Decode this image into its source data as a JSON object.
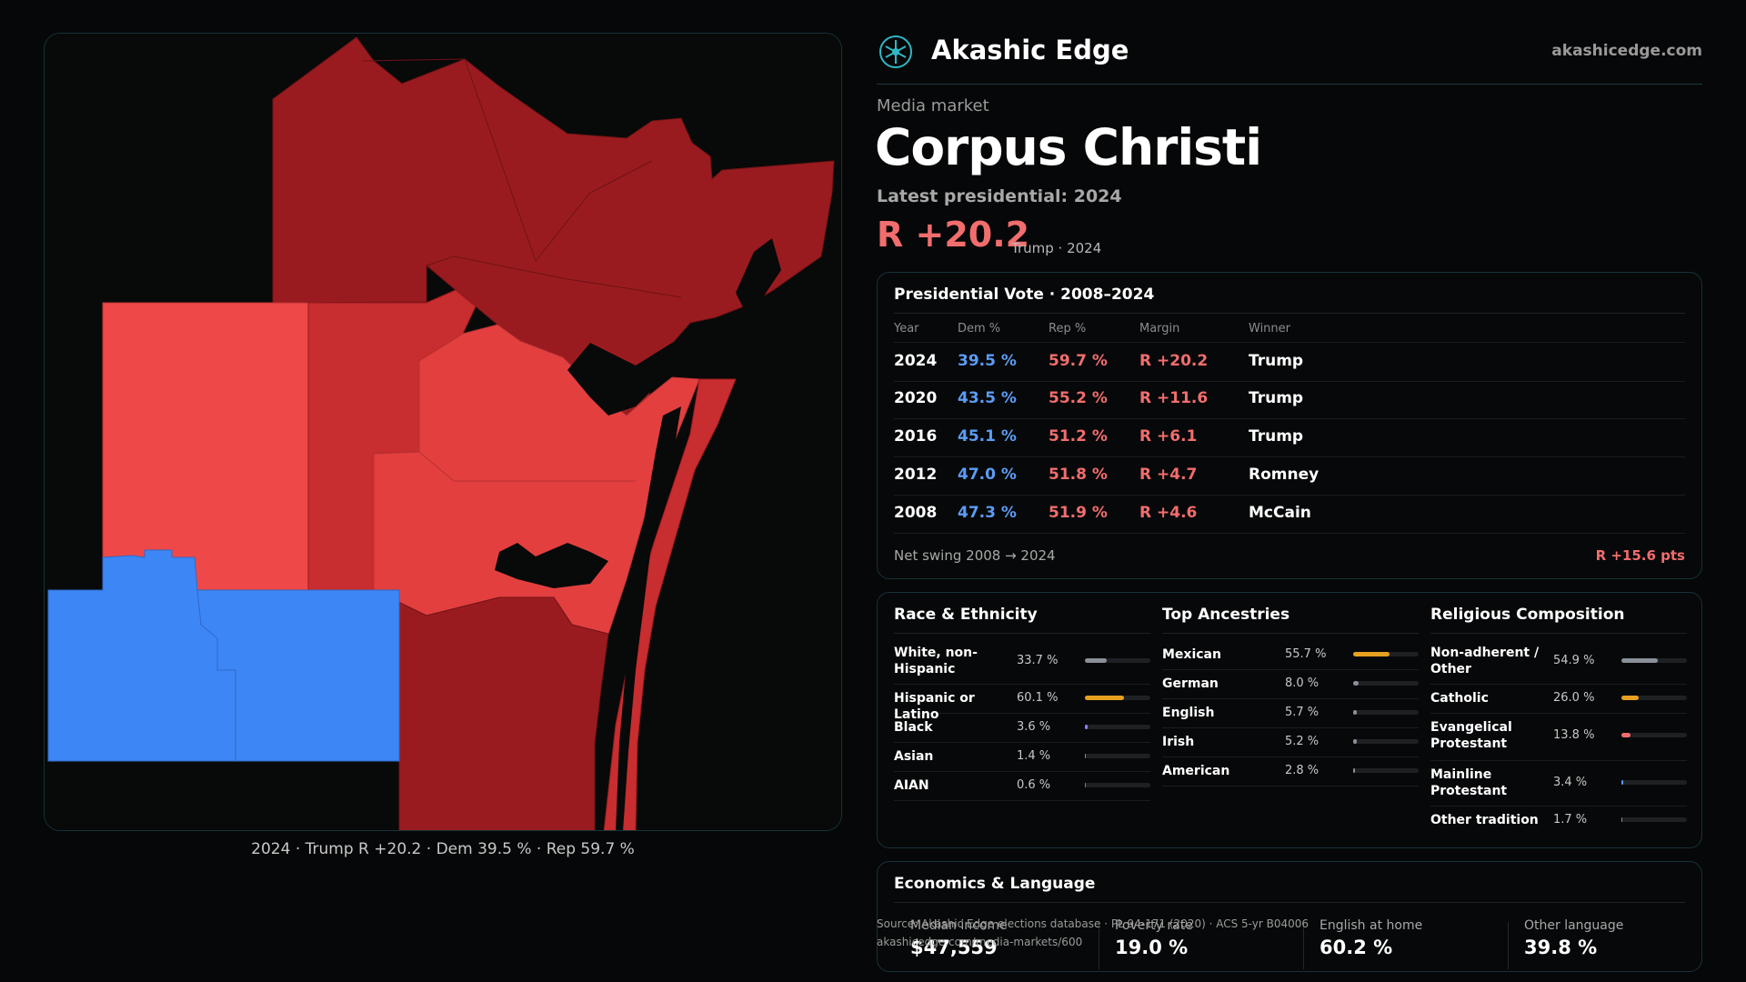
{
  "map": {
    "caption": "2024 · Trump R +20.2 · Dem 39.5 % · Rep 59.7 %",
    "colors": {
      "dark_red": "#9a1b1f",
      "red": "#ef4848",
      "mid_red": "#c82d2f",
      "blue": "#3d86f5",
      "water": "#080909"
    }
  },
  "header": {
    "brand": "Akashic Edge",
    "site": "akashicedge.com",
    "logo_icon": "akashic-logo-icon"
  },
  "market": {
    "kicker": "Media market",
    "name": "Corpus Christi",
    "latest_label": "Latest presidential: 2024",
    "margin": "R +20.2",
    "margin_sub": "Trump · 2024"
  },
  "vote_table": {
    "title": "Presidential Vote · 2008–2024",
    "headers": {
      "year": "Year",
      "dem": "Dem %",
      "rep": "Rep %",
      "margin": "Margin",
      "winner": "Winner"
    },
    "rows": [
      {
        "year": "2024",
        "dem": "39.5 %",
        "rep": "59.7 %",
        "margin": "R +20.2",
        "winner": "Trump"
      },
      {
        "year": "2020",
        "dem": "43.5 %",
        "rep": "55.2 %",
        "margin": "R +11.6",
        "winner": "Trump"
      },
      {
        "year": "2016",
        "dem": "45.1 %",
        "rep": "51.2 %",
        "margin": "R +6.1",
        "winner": "Trump"
      },
      {
        "year": "2012",
        "dem": "47.0 %",
        "rep": "51.8 %",
        "margin": "R +4.7",
        "winner": "Romney"
      },
      {
        "year": "2008",
        "dem": "47.3 %",
        "rep": "51.9 %",
        "margin": "R +4.6",
        "winner": "McCain"
      }
    ],
    "swing_label": "Net swing 2008 → 2024",
    "swing_value": "R +15.6 pts"
  },
  "demographics": {
    "race": {
      "title": "Race & Ethnicity",
      "items": [
        {
          "label": "White, non-Hispanic",
          "value": "33.7 %",
          "pct": 33.7,
          "color": "#8a9099"
        },
        {
          "label": "Hispanic or Latino",
          "value": "60.1 %",
          "pct": 60.1,
          "color": "#e8a020"
        },
        {
          "label": "Black",
          "value": "3.6 %",
          "pct": 3.6,
          "color": "#8a7ff0"
        },
        {
          "label": "Asian",
          "value": "1.4 %",
          "pct": 1.4,
          "color": "#22b8a0"
        },
        {
          "label": "AIAN",
          "value": "0.6 %",
          "pct": 0.6,
          "color": "#d06040"
        }
      ]
    },
    "ancestry": {
      "title": "Top Ancestries",
      "items": [
        {
          "label": "Mexican",
          "value": "55.7 %",
          "pct": 55.7,
          "color": "#e8a020"
        },
        {
          "label": "German",
          "value": "8.0 %",
          "pct": 8.0,
          "color": "#8a9099"
        },
        {
          "label": "English",
          "value": "5.7 %",
          "pct": 5.7,
          "color": "#8a9099"
        },
        {
          "label": "Irish",
          "value": "5.2 %",
          "pct": 5.2,
          "color": "#8a9099"
        },
        {
          "label": "American",
          "value": "2.8 %",
          "pct": 2.8,
          "color": "#8a9099"
        }
      ]
    },
    "religion": {
      "title": "Religious Composition",
      "items": [
        {
          "label": "Non-adherent / Other",
          "value": "54.9 %",
          "pct": 54.9,
          "color": "#8a9099"
        },
        {
          "label": "Catholic",
          "value": "26.0 %",
          "pct": 26.0,
          "color": "#e8a020"
        },
        {
          "label": "Evangelical Protestant",
          "value": "13.8 %",
          "pct": 13.8,
          "color": "#f26d6d"
        },
        {
          "label": "Mainline Protestant",
          "value": "3.4 %",
          "pct": 3.4,
          "color": "#5b9cf5"
        },
        {
          "label": "Other tradition",
          "value": "1.7 %",
          "pct": 1.7,
          "color": "#8a9099"
        }
      ]
    }
  },
  "economics": {
    "title": "Economics & Language",
    "cells": [
      {
        "label": "Median income",
        "value": "$47,559"
      },
      {
        "label": "Poverty rate",
        "value": "19.0 %"
      },
      {
        "label": "English at home",
        "value": "60.2 %"
      },
      {
        "label": "Other language",
        "value": "39.8 %"
      }
    ]
  },
  "source": {
    "line1": "Source: Akashic Edge elections database · PL 94-171 (2020) · ACS 5-yr B04006",
    "line2": "akashicedge.com/media-markets/600"
  }
}
